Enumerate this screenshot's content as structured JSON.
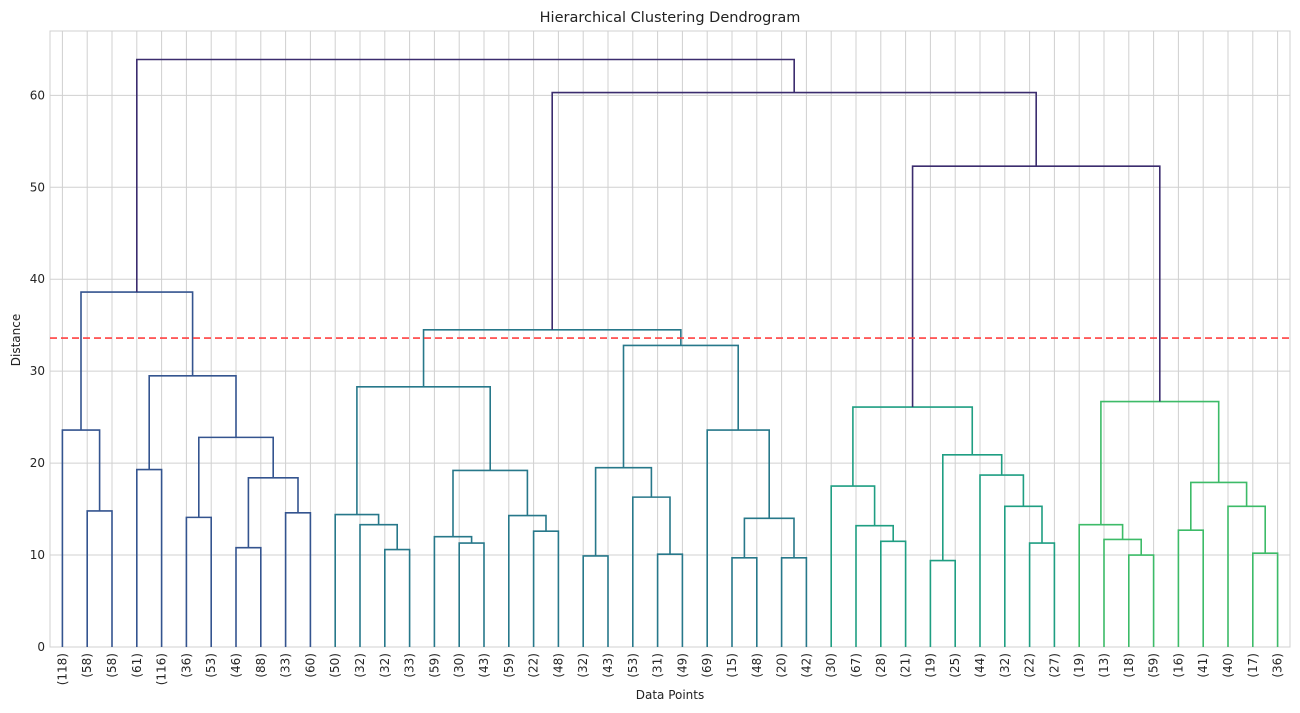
{
  "chart_data": {
    "type": "dendrogram",
    "title": "Hierarchical Clustering Dendrogram",
    "xlabel": "Data Points",
    "ylabel": "Distance",
    "ylim": [
      0,
      67
    ],
    "yticks": [
      0,
      10,
      20,
      30,
      40,
      50,
      60
    ],
    "grid": true,
    "threshold": 33.6,
    "threshold_color": "#ff4040",
    "leaf_labels": [
      "(118)",
      "(58)",
      "(58)",
      "(61)",
      "(116)",
      "(36)",
      "(53)",
      "(46)",
      "(88)",
      "(33)",
      "(60)",
      "(50)",
      "(32)",
      "(32)",
      "(33)",
      "(59)",
      "(30)",
      "(43)",
      "(59)",
      "(22)",
      "(48)",
      "(32)",
      "(43)",
      "(53)",
      "(31)",
      "(49)",
      "(69)",
      "(15)",
      "(48)",
      "(20)",
      "(42)",
      "(30)",
      "(67)",
      "(28)",
      "(21)",
      "(19)",
      "(25)",
      "(44)",
      "(32)",
      "(22)",
      "(27)",
      "(19)",
      "(13)",
      "(18)",
      "(59)",
      "(16)",
      "(41)",
      "(40)",
      "(17)",
      "(36)"
    ],
    "colors": {
      "above": "#3b2c6e",
      "cluster1": "#34548f",
      "cluster2": "#27788a",
      "cluster3": "#1f9e82",
      "cluster4": "#3dbb68"
    },
    "merges": [
      {
        "l": 1,
        "r": 2,
        "h": 14.8,
        "c": "cluster1"
      },
      {
        "l": 0,
        "r": 1.5,
        "h": 23.6,
        "c": "cluster1"
      },
      {
        "l": 3,
        "r": 4,
        "h": 19.3,
        "c": "cluster1"
      },
      {
        "l": 5,
        "r": 6,
        "h": 14.1,
        "c": "cluster1"
      },
      {
        "l": 7,
        "r": 8,
        "h": 10.8,
        "c": "cluster1"
      },
      {
        "l": 9,
        "r": 10,
        "h": 14.6,
        "c": "cluster1"
      },
      {
        "l": 7.5,
        "r": 9.5,
        "h": 18.4,
        "c": "cluster1"
      },
      {
        "l": 5.5,
        "r": 8.5,
        "h": 22.8,
        "c": "cluster1"
      },
      {
        "l": 3.5,
        "r": 7,
        "h": 29.5,
        "c": "cluster1"
      },
      {
        "l": 0.75,
        "r": 5.25,
        "h": 38.6,
        "c": "cluster1"
      },
      {
        "l": 13,
        "r": 14,
        "h": 10.6,
        "c": "cluster2"
      },
      {
        "l": 12,
        "r": 13.5,
        "h": 13.3,
        "c": "cluster2"
      },
      {
        "l": 11,
        "r": 12.75,
        "h": 14.4,
        "c": "cluster2"
      },
      {
        "l": 16,
        "r": 17,
        "h": 11.3,
        "c": "cluster2"
      },
      {
        "l": 15,
        "r": 16.5,
        "h": 12.0,
        "c": "cluster2"
      },
      {
        "l": 19,
        "r": 20,
        "h": 12.6,
        "c": "cluster2"
      },
      {
        "l": 18,
        "r": 19.5,
        "h": 14.3,
        "c": "cluster2"
      },
      {
        "l": 15.75,
        "r": 18.75,
        "h": 19.2,
        "c": "cluster2"
      },
      {
        "l": 11.875,
        "r": 17.25,
        "h": 28.3,
        "c": "cluster2"
      },
      {
        "l": 21,
        "r": 22,
        "h": 9.9,
        "c": "cluster2"
      },
      {
        "l": 24,
        "r": 25,
        "h": 10.1,
        "c": "cluster2"
      },
      {
        "l": 23,
        "r": 24.5,
        "h": 16.3,
        "c": "cluster2"
      },
      {
        "l": 21.5,
        "r": 23.75,
        "h": 19.5,
        "c": "cluster2"
      },
      {
        "l": 27,
        "r": 28,
        "h": 9.7,
        "c": "cluster2"
      },
      {
        "l": 29,
        "r": 30,
        "h": 9.7,
        "c": "cluster2"
      },
      {
        "l": 27.5,
        "r": 29.5,
        "h": 14.0,
        "c": "cluster2"
      },
      {
        "l": 26,
        "r": 28.5,
        "h": 23.6,
        "c": "cluster2"
      },
      {
        "l": 22.625,
        "r": 27.25,
        "h": 32.8,
        "c": "cluster2"
      },
      {
        "l": 14.5625,
        "r": 24.9375,
        "h": 34.5,
        "c": "cluster2"
      },
      {
        "l": 33,
        "r": 34,
        "h": 11.5,
        "c": "cluster3"
      },
      {
        "l": 32,
        "r": 33.5,
        "h": 13.2,
        "c": "cluster3"
      },
      {
        "l": 31,
        "r": 32.75,
        "h": 17.5,
        "c": "cluster3"
      },
      {
        "l": 35,
        "r": 36,
        "h": 9.4,
        "c": "cluster3"
      },
      {
        "l": 39,
        "r": 40,
        "h": 11.3,
        "c": "cluster3"
      },
      {
        "l": 38,
        "r": 39.5,
        "h": 15.3,
        "c": "cluster3"
      },
      {
        "l": 37,
        "r": 38.75,
        "h": 18.7,
        "c": "cluster3"
      },
      {
        "l": 35.5,
        "r": 37.875,
        "h": 20.9,
        "c": "cluster3"
      },
      {
        "l": 31.875,
        "r": 36.6875,
        "h": 26.1,
        "c": "cluster3"
      },
      {
        "l": 43,
        "r": 44,
        "h": 10.0,
        "c": "cluster4"
      },
      {
        "l": 42,
        "r": 43.5,
        "h": 11.7,
        "c": "cluster4"
      },
      {
        "l": 41,
        "r": 42.75,
        "h": 13.3,
        "c": "cluster4"
      },
      {
        "l": 45,
        "r": 46,
        "h": 12.7,
        "c": "cluster4"
      },
      {
        "l": 48,
        "r": 49,
        "h": 10.2,
        "c": "cluster4"
      },
      {
        "l": 47,
        "r": 48.5,
        "h": 15.3,
        "c": "cluster4"
      },
      {
        "l": 45.5,
        "r": 47.75,
        "h": 17.9,
        "c": "cluster4"
      },
      {
        "l": 41.875,
        "r": 46.625,
        "h": 26.7,
        "c": "cluster4"
      },
      {
        "l": 34.28125,
        "r": 44.25,
        "h": 52.3,
        "c": "above"
      },
      {
        "l": 19.75,
        "r": 39.265625,
        "h": 60.3,
        "c": "above"
      },
      {
        "l": 3.0,
        "r": 29.5078125,
        "h": 63.9,
        "c": "above"
      }
    ]
  }
}
